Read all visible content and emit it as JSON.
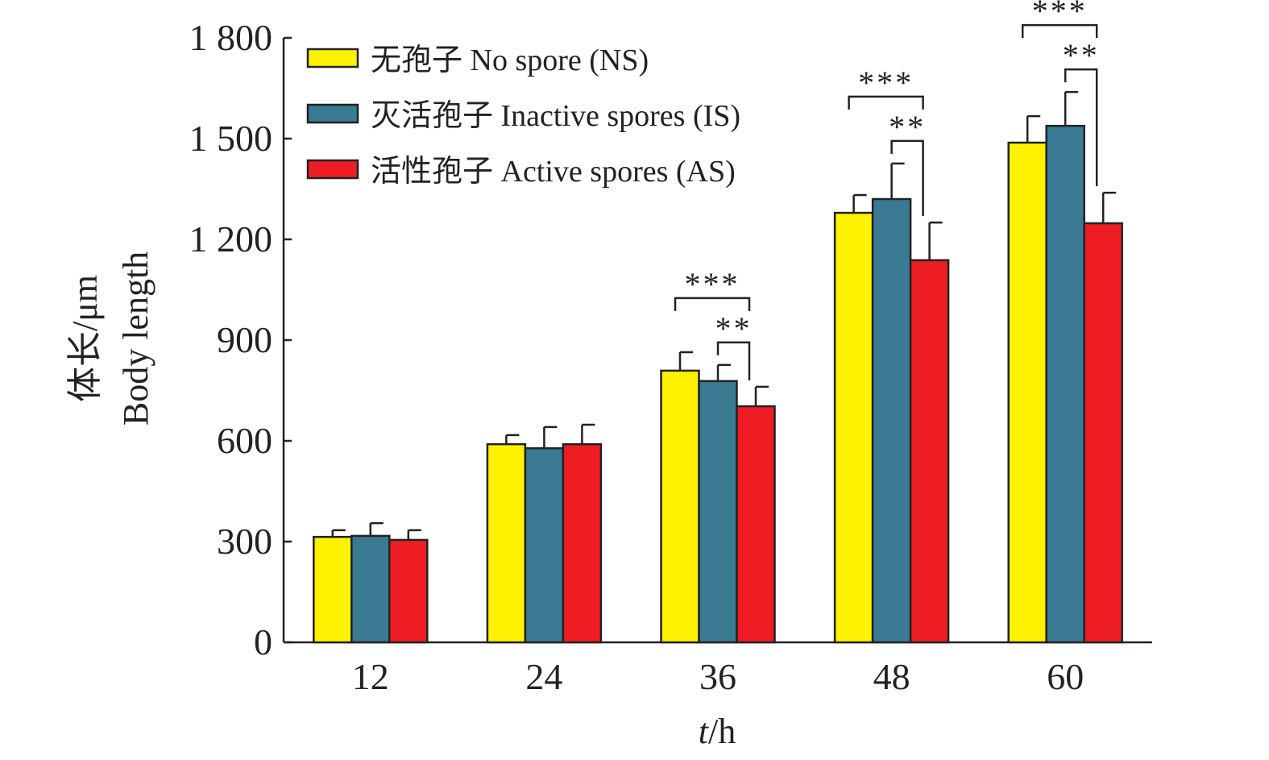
{
  "chart_data": {
    "type": "bar",
    "title": "",
    "xlabel": "t/h",
    "xlabel_italic_part": "t",
    "xlabel_rest": "/h",
    "ylabel_line1": "体长/μm",
    "ylabel_line2": "Body length",
    "ylim": [
      0,
      1800
    ],
    "yticks": [
      0,
      300,
      600,
      900,
      1200,
      1500,
      1800
    ],
    "ytick_labels": [
      "0",
      "300",
      "600",
      "900",
      "1 200",
      "1 500",
      "1 800"
    ],
    "categories": [
      "12",
      "24",
      "36",
      "48",
      "60"
    ],
    "grid": false,
    "legend_position": "top-left",
    "series": [
      {
        "name": "无孢子 No spore (NS)",
        "color": "#FFF200",
        "values": [
          314,
          590,
          809,
          1279,
          1488
        ],
        "errors": [
          20,
          27,
          55,
          53,
          79
        ]
      },
      {
        "name": "灭活孢子 Inactive spores (IS)",
        "color": "#3A7A92",
        "values": [
          317,
          578,
          778,
          1320,
          1538
        ],
        "errors": [
          38,
          63,
          48,
          106,
          101
        ]
      },
      {
        "name": "活性孢子 Active spores (AS)",
        "color": "#EE1D23",
        "values": [
          305,
          590,
          703,
          1138,
          1248
        ],
        "errors": [
          29,
          58,
          58,
          112,
          91
        ]
      }
    ],
    "annotations": [
      {
        "category": "36",
        "between": [
          "NS",
          "AS"
        ],
        "label": "***"
      },
      {
        "category": "36",
        "between": [
          "IS",
          "AS"
        ],
        "label": "**"
      },
      {
        "category": "48",
        "between": [
          "NS",
          "AS"
        ],
        "label": "***"
      },
      {
        "category": "48",
        "between": [
          "IS",
          "AS"
        ],
        "label": "**"
      },
      {
        "category": "60",
        "between": [
          "NS",
          "AS"
        ],
        "label": "***"
      },
      {
        "category": "60",
        "between": [
          "IS",
          "AS"
        ],
        "label": "**"
      }
    ]
  }
}
